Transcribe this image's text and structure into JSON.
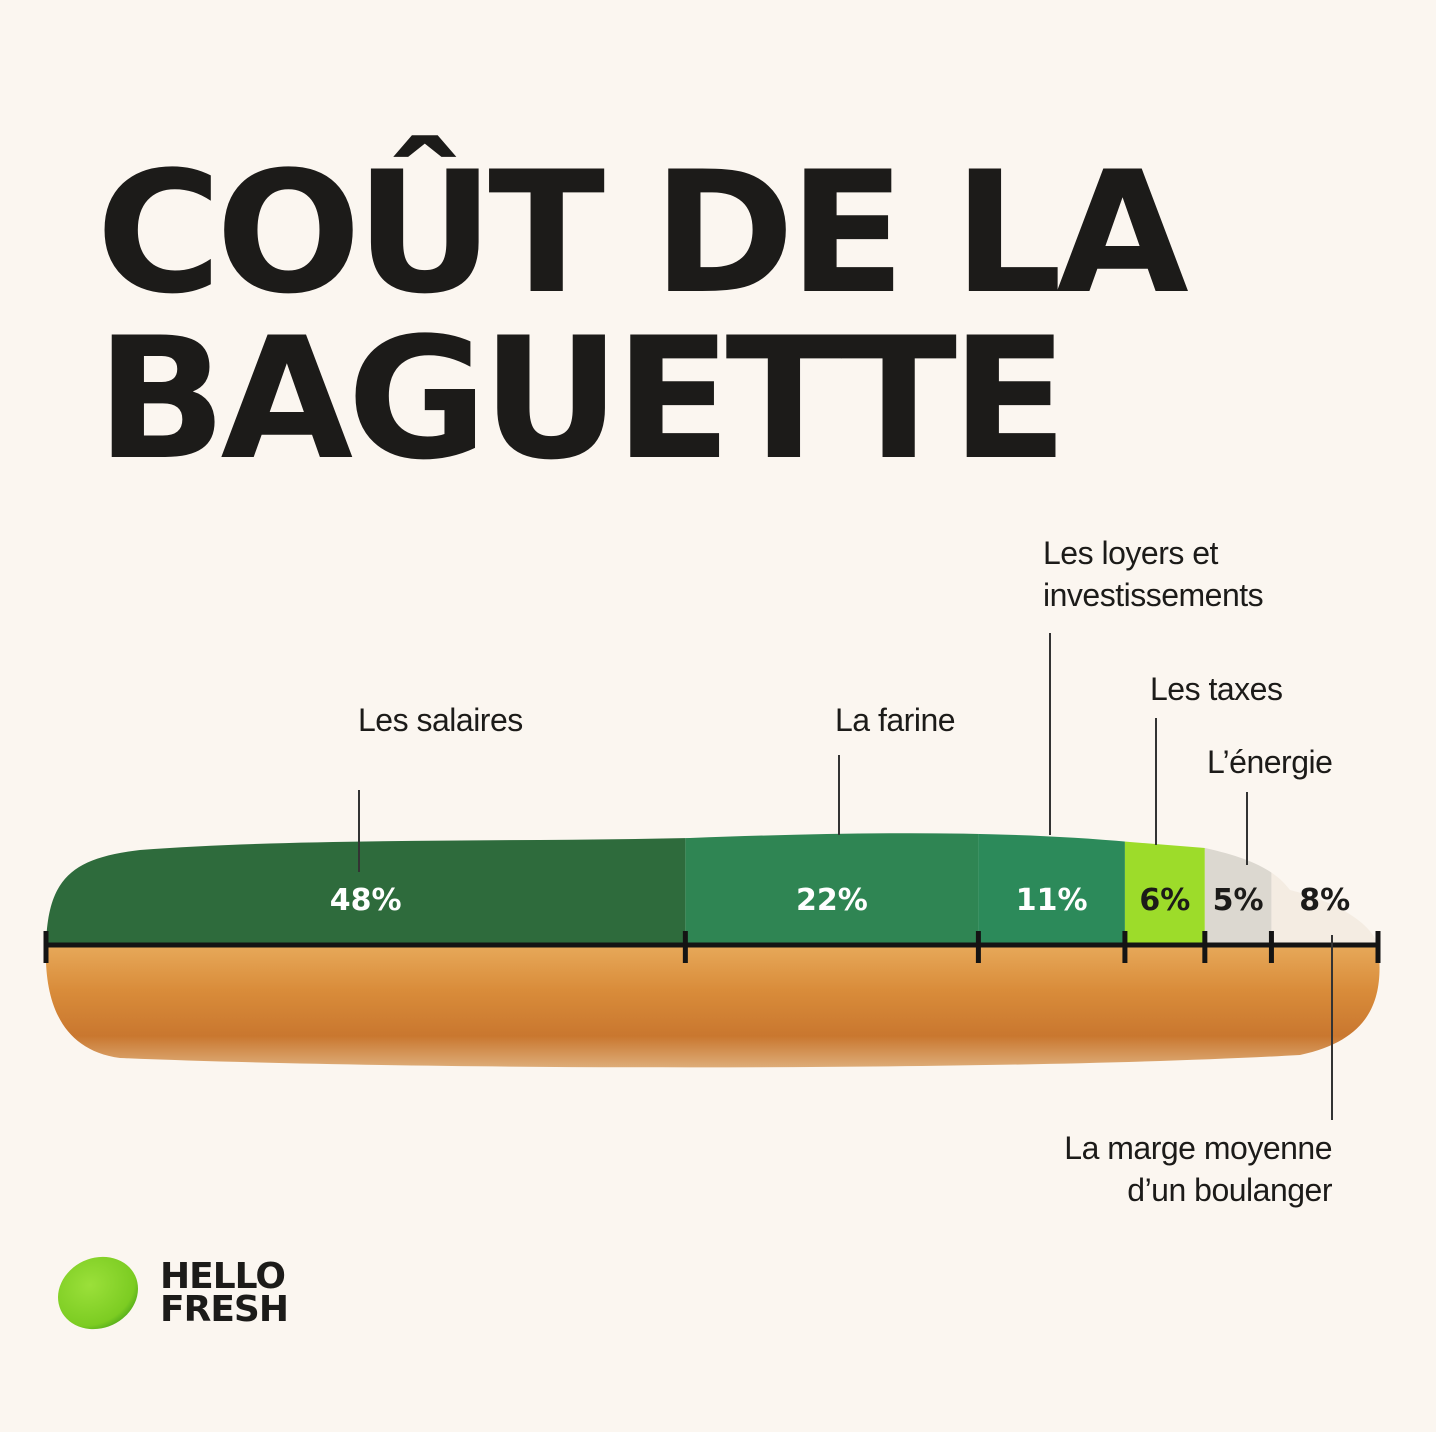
{
  "title_lines": [
    "COÛT DE LA",
    "BAGUETTE"
  ],
  "chart_data": {
    "type": "bar",
    "orientation": "horizontal-stacked",
    "categories": [
      "Les salaires",
      "La farine",
      "Les loyers et investissements",
      "Les taxes",
      "L’énergie",
      "La marge moyenne d’un boulanger"
    ],
    "values": [
      48,
      22,
      11,
      6,
      5,
      8
    ],
    "value_labels": [
      "48%",
      "22%",
      "11%",
      "6%",
      "5%",
      "8%"
    ],
    "unit": "%",
    "colors": [
      "#2e6b3c",
      "#2f8553",
      "#2c8a5a",
      "#9ddc2a",
      "#dcd8d0",
      "#f4ece2"
    ],
    "label_colors": [
      "#ffffff",
      "#ffffff",
      "#ffffff",
      "#1c1b19",
      "#1c1b19",
      "#1c1b19"
    ]
  },
  "labels": {
    "salaires": "Les salaires",
    "farine": "La farine",
    "loyers_1": "Les loyers et",
    "loyers_2": "investissements",
    "taxes": "Les taxes",
    "energie": "L’énergie",
    "marge_1": "La marge moyenne",
    "marge_2": "d’un boulanger"
  },
  "logo": {
    "line1": "HELLO",
    "line2": "FRESH",
    "color": "#8bd12a"
  }
}
